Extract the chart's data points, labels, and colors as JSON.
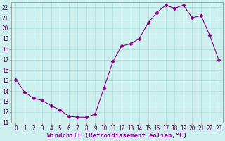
{
  "x": [
    0,
    1,
    2,
    3,
    4,
    5,
    6,
    7,
    8,
    9,
    10,
    11,
    12,
    13,
    14,
    15,
    16,
    17,
    18,
    19,
    20,
    21,
    22,
    23
  ],
  "y": [
    15.1,
    13.9,
    13.3,
    13.1,
    12.6,
    12.2,
    11.6,
    11.5,
    11.5,
    11.8,
    14.3,
    16.8,
    18.3,
    18.5,
    19.0,
    20.5,
    21.5,
    22.2,
    21.9,
    22.2,
    21.0,
    21.2,
    19.3,
    17.0
  ],
  "line_color": "#880088",
  "marker": "D",
  "marker_size": 2.5,
  "bg_color": "#cdf0ee",
  "grid_color": "#aadddd",
  "xlabel": "Windchill (Refroidissement éolien,°C)",
  "xlabel_fontsize": 6.5,
  "ylim": [
    11,
    22.5
  ],
  "yticks": [
    11,
    12,
    13,
    14,
    15,
    16,
    17,
    18,
    19,
    20,
    21,
    22
  ],
  "xticks": [
    0,
    1,
    2,
    3,
    4,
    5,
    6,
    7,
    8,
    9,
    10,
    11,
    12,
    13,
    14,
    15,
    16,
    17,
    18,
    19,
    20,
    21,
    22,
    23
  ],
  "tick_fontsize": 5.5
}
